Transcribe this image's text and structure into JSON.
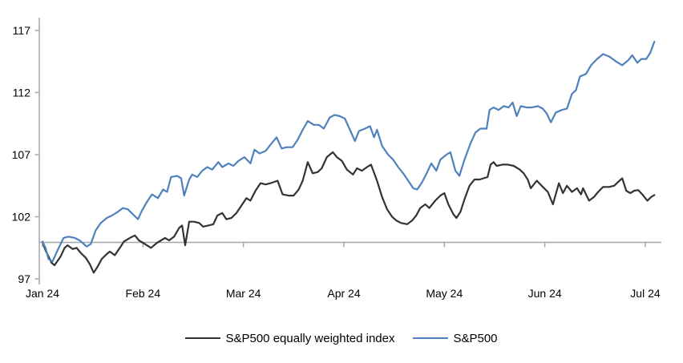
{
  "chart_data": {
    "type": "line",
    "title": "",
    "xlabel": "",
    "ylabel": "",
    "x_axis": {
      "tick_labels": [
        "Jan 24",
        "Feb 24",
        "Mar 24",
        "Apr 24",
        "May 24",
        "Jun 24",
        "Jul 24"
      ],
      "tick_positions_months": [
        0,
        1,
        2,
        3,
        4,
        5,
        6
      ],
      "range_months": [
        0,
        6.09
      ]
    },
    "y_axis": {
      "ticks": [
        97,
        102,
        107,
        112,
        117
      ],
      "range": [
        97,
        117
      ],
      "baseline_value": 100
    },
    "grid": "off",
    "legend_position": "bottom",
    "axis_color": "#a6a6a6",
    "series": [
      {
        "name": "S&P500 equally weighted index",
        "color": "#333333",
        "points": [
          [
            0.0,
            100.0
          ],
          [
            0.03,
            99.3
          ],
          [
            0.09,
            98.3
          ],
          [
            0.12,
            98.1
          ],
          [
            0.18,
            98.8
          ],
          [
            0.22,
            99.5
          ],
          [
            0.25,
            99.7
          ],
          [
            0.3,
            99.4
          ],
          [
            0.34,
            99.5
          ],
          [
            0.38,
            99.1
          ],
          [
            0.43,
            98.7
          ],
          [
            0.47,
            98.2
          ],
          [
            0.51,
            97.5
          ],
          [
            0.55,
            98.0
          ],
          [
            0.59,
            98.6
          ],
          [
            0.64,
            99.0
          ],
          [
            0.67,
            99.2
          ],
          [
            0.72,
            98.9
          ],
          [
            0.77,
            99.5
          ],
          [
            0.81,
            100.0
          ],
          [
            0.87,
            100.3
          ],
          [
            0.92,
            100.5
          ],
          [
            0.96,
            100.1
          ],
          [
            1.0,
            99.9
          ],
          [
            1.08,
            99.5
          ],
          [
            1.14,
            99.9
          ],
          [
            1.18,
            100.1
          ],
          [
            1.22,
            100.3
          ],
          [
            1.26,
            100.1
          ],
          [
            1.31,
            100.4
          ],
          [
            1.36,
            101.1
          ],
          [
            1.39,
            101.3
          ],
          [
            1.42,
            99.7
          ],
          [
            1.46,
            101.6
          ],
          [
            1.51,
            101.6
          ],
          [
            1.56,
            101.5
          ],
          [
            1.6,
            101.2
          ],
          [
            1.65,
            101.3
          ],
          [
            1.7,
            101.4
          ],
          [
            1.74,
            102.1
          ],
          [
            1.79,
            102.3
          ],
          [
            1.83,
            101.8
          ],
          [
            1.88,
            101.9
          ],
          [
            1.93,
            102.3
          ],
          [
            1.98,
            102.9
          ],
          [
            2.03,
            103.5
          ],
          [
            2.07,
            103.3
          ],
          [
            2.12,
            104.1
          ],
          [
            2.17,
            104.7
          ],
          [
            2.22,
            104.6
          ],
          [
            2.27,
            104.7
          ],
          [
            2.34,
            104.9
          ],
          [
            2.39,
            103.8
          ],
          [
            2.45,
            103.7
          ],
          [
            2.5,
            103.7
          ],
          [
            2.55,
            104.2
          ],
          [
            2.59,
            104.9
          ],
          [
            2.64,
            106.4
          ],
          [
            2.69,
            105.5
          ],
          [
            2.74,
            105.6
          ],
          [
            2.78,
            105.9
          ],
          [
            2.83,
            106.8
          ],
          [
            2.89,
            107.2
          ],
          [
            2.93,
            106.8
          ],
          [
            2.98,
            106.5
          ],
          [
            3.03,
            105.8
          ],
          [
            3.09,
            105.4
          ],
          [
            3.13,
            105.9
          ],
          [
            3.18,
            105.7
          ],
          [
            3.23,
            106.0
          ],
          [
            3.27,
            106.2
          ],
          [
            3.33,
            104.9
          ],
          [
            3.38,
            103.6
          ],
          [
            3.43,
            102.6
          ],
          [
            3.48,
            102.0
          ],
          [
            3.52,
            101.7
          ],
          [
            3.57,
            101.5
          ],
          [
            3.63,
            101.4
          ],
          [
            3.68,
            101.7
          ],
          [
            3.72,
            102.1
          ],
          [
            3.76,
            102.7
          ],
          [
            3.81,
            103.0
          ],
          [
            3.85,
            102.7
          ],
          [
            3.91,
            103.3
          ],
          [
            3.96,
            103.7
          ],
          [
            4.0,
            103.9
          ],
          [
            4.04,
            103.0
          ],
          [
            4.09,
            102.2
          ],
          [
            4.12,
            101.9
          ],
          [
            4.16,
            102.4
          ],
          [
            4.2,
            103.4
          ],
          [
            4.25,
            104.5
          ],
          [
            4.3,
            105.0
          ],
          [
            4.35,
            105.0
          ],
          [
            4.39,
            105.1
          ],
          [
            4.43,
            105.2
          ],
          [
            4.46,
            106.2
          ],
          [
            4.49,
            106.4
          ],
          [
            4.52,
            106.1
          ],
          [
            4.58,
            106.2
          ],
          [
            4.63,
            106.2
          ],
          [
            4.69,
            106.1
          ],
          [
            4.75,
            105.8
          ],
          [
            4.79,
            105.5
          ],
          [
            4.83,
            105.0
          ],
          [
            4.86,
            104.3
          ],
          [
            4.92,
            104.9
          ],
          [
            4.98,
            104.4
          ],
          [
            5.03,
            104.0
          ],
          [
            5.08,
            103.0
          ],
          [
            5.14,
            104.7
          ],
          [
            5.18,
            103.9
          ],
          [
            5.22,
            104.5
          ],
          [
            5.27,
            104.0
          ],
          [
            5.32,
            104.3
          ],
          [
            5.36,
            103.8
          ],
          [
            5.38,
            104.3
          ],
          [
            5.44,
            103.3
          ],
          [
            5.49,
            103.6
          ],
          [
            5.53,
            104.0
          ],
          [
            5.58,
            104.4
          ],
          [
            5.64,
            104.4
          ],
          [
            5.69,
            104.5
          ],
          [
            5.73,
            104.8
          ],
          [
            5.77,
            105.1
          ],
          [
            5.81,
            104.1
          ],
          [
            5.85,
            103.9
          ],
          [
            5.89,
            104.1
          ],
          [
            5.93,
            104.15
          ],
          [
            5.97,
            103.8
          ],
          [
            6.02,
            103.3
          ],
          [
            6.06,
            103.6
          ],
          [
            6.09,
            103.75
          ]
        ]
      },
      {
        "name": "S&P500",
        "color": "#4f81bd",
        "points": [
          [
            0.0,
            100.0
          ],
          [
            0.03,
            99.5
          ],
          [
            0.06,
            98.6
          ],
          [
            0.1,
            98.4
          ],
          [
            0.15,
            99.3
          ],
          [
            0.21,
            100.3
          ],
          [
            0.26,
            100.4
          ],
          [
            0.32,
            100.3
          ],
          [
            0.37,
            100.1
          ],
          [
            0.44,
            99.6
          ],
          [
            0.48,
            99.8
          ],
          [
            0.53,
            100.9
          ],
          [
            0.58,
            101.5
          ],
          [
            0.64,
            101.9
          ],
          [
            0.69,
            102.1
          ],
          [
            0.75,
            102.4
          ],
          [
            0.8,
            102.7
          ],
          [
            0.85,
            102.6
          ],
          [
            0.9,
            102.2
          ],
          [
            0.95,
            101.8
          ],
          [
            0.99,
            102.5
          ],
          [
            1.04,
            103.2
          ],
          [
            1.09,
            103.8
          ],
          [
            1.15,
            103.5
          ],
          [
            1.2,
            104.2
          ],
          [
            1.24,
            104.0
          ],
          [
            1.28,
            105.2
          ],
          [
            1.34,
            105.3
          ],
          [
            1.38,
            105.1
          ],
          [
            1.41,
            103.7
          ],
          [
            1.46,
            105.0
          ],
          [
            1.49,
            105.4
          ],
          [
            1.54,
            105.2
          ],
          [
            1.59,
            105.7
          ],
          [
            1.64,
            106.0
          ],
          [
            1.69,
            105.8
          ],
          [
            1.75,
            106.4
          ],
          [
            1.79,
            106.0
          ],
          [
            1.85,
            106.3
          ],
          [
            1.9,
            106.1
          ],
          [
            1.95,
            106.5
          ],
          [
            2.01,
            106.8
          ],
          [
            2.07,
            106.3
          ],
          [
            2.11,
            107.4
          ],
          [
            2.16,
            107.1
          ],
          [
            2.22,
            107.3
          ],
          [
            2.27,
            107.8
          ],
          [
            2.33,
            108.4
          ],
          [
            2.38,
            107.5
          ],
          [
            2.43,
            107.6
          ],
          [
            2.49,
            107.6
          ],
          [
            2.54,
            108.2
          ],
          [
            2.59,
            109.0
          ],
          [
            2.64,
            109.7
          ],
          [
            2.7,
            109.4
          ],
          [
            2.75,
            109.4
          ],
          [
            2.8,
            109.1
          ],
          [
            2.86,
            110.0
          ],
          [
            2.91,
            110.2
          ],
          [
            2.96,
            110.1
          ],
          [
            3.01,
            109.9
          ],
          [
            3.06,
            109.0
          ],
          [
            3.11,
            108.1
          ],
          [
            3.15,
            108.9
          ],
          [
            3.21,
            109.1
          ],
          [
            3.26,
            109.3
          ],
          [
            3.3,
            108.4
          ],
          [
            3.33,
            109.0
          ],
          [
            3.38,
            107.7
          ],
          [
            3.44,
            107.0
          ],
          [
            3.49,
            106.6
          ],
          [
            3.54,
            106.0
          ],
          [
            3.59,
            105.5
          ],
          [
            3.64,
            104.9
          ],
          [
            3.69,
            104.3
          ],
          [
            3.73,
            104.2
          ],
          [
            3.78,
            104.8
          ],
          [
            3.83,
            105.6
          ],
          [
            3.87,
            106.3
          ],
          [
            3.92,
            105.7
          ],
          [
            3.96,
            106.6
          ],
          [
            4.02,
            107.0
          ],
          [
            4.06,
            107.2
          ],
          [
            4.11,
            105.7
          ],
          [
            4.15,
            105.3
          ],
          [
            4.2,
            106.6
          ],
          [
            4.26,
            107.9
          ],
          [
            4.31,
            108.8
          ],
          [
            4.36,
            109.1
          ],
          [
            4.42,
            109.1
          ],
          [
            4.45,
            110.6
          ],
          [
            4.49,
            110.8
          ],
          [
            4.54,
            110.6
          ],
          [
            4.59,
            110.9
          ],
          [
            4.64,
            110.8
          ],
          [
            4.68,
            111.2
          ],
          [
            4.72,
            110.1
          ],
          [
            4.76,
            110.9
          ],
          [
            4.82,
            110.8
          ],
          [
            4.87,
            110.8
          ],
          [
            4.93,
            110.9
          ],
          [
            4.98,
            110.7
          ],
          [
            5.02,
            110.3
          ],
          [
            5.06,
            109.6
          ],
          [
            5.11,
            110.4
          ],
          [
            5.17,
            110.6
          ],
          [
            5.22,
            110.7
          ],
          [
            5.27,
            111.9
          ],
          [
            5.31,
            112.2
          ],
          [
            5.35,
            113.3
          ],
          [
            5.41,
            113.5
          ],
          [
            5.46,
            114.2
          ],
          [
            5.52,
            114.7
          ],
          [
            5.58,
            115.1
          ],
          [
            5.64,
            114.9
          ],
          [
            5.71,
            114.5
          ],
          [
            5.77,
            114.2
          ],
          [
            5.83,
            114.6
          ],
          [
            5.87,
            115.0
          ],
          [
            5.92,
            114.4
          ],
          [
            5.96,
            114.7
          ],
          [
            6.01,
            114.7
          ],
          [
            6.05,
            115.2
          ],
          [
            6.09,
            116.1
          ]
        ]
      }
    ]
  },
  "legend": {
    "item1_label": "S&P500 equally weighted index",
    "item2_label": "S&P500"
  },
  "colors": {
    "equal_weight_line": "#333333",
    "sp500_line": "#4f81bd",
    "axis": "#a6a6a6",
    "text": "#000000",
    "background": "#ffffff"
  }
}
